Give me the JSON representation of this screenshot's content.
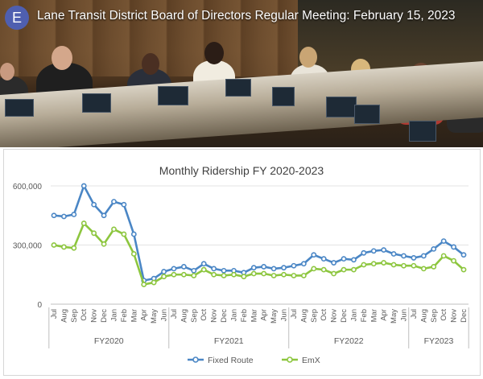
{
  "video": {
    "badge": "E",
    "title": "Lane Transit District Board of Directors Regular Meeting: February 15, 2023"
  },
  "chart_data": {
    "type": "line",
    "title": "Monthly Ridership FY 2020-2023",
    "ylim": [
      0,
      600000
    ],
    "yticks": [
      "0",
      "300,000",
      "600,000"
    ],
    "grid": "horizontal",
    "legend_position": "bottom",
    "x": [
      "Jul",
      "Aug",
      "Sep",
      "Oct",
      "Nov",
      "Dec",
      "Jan",
      "Feb",
      "Mar",
      "Apr",
      "May",
      "Jun",
      "Jul",
      "Aug",
      "Sep",
      "Oct",
      "Nov",
      "Dec",
      "Jan",
      "Feb",
      "Mar",
      "Apr",
      "May",
      "Jun",
      "Jul",
      "Aug",
      "Sep",
      "Oct",
      "Nov",
      "Dec",
      "Jan",
      "Feb",
      "Mar",
      "Apr",
      "May",
      "Jun",
      "Jul",
      "Aug",
      "Sep",
      "Oct",
      "Nov",
      "Dec"
    ],
    "groups": [
      {
        "label": "FY2020",
        "count": 12
      },
      {
        "label": "FY2021",
        "count": 12
      },
      {
        "label": "FY2022",
        "count": 12
      },
      {
        "label": "FY2023",
        "count": 6
      }
    ],
    "series": [
      {
        "name": "Fixed Route",
        "color": "#4a86c5",
        "values": [
          450000,
          445000,
          455000,
          600000,
          505000,
          450000,
          520000,
          505000,
          355000,
          120000,
          130000,
          165000,
          180000,
          190000,
          170000,
          205000,
          180000,
          170000,
          170000,
          160000,
          185000,
          190000,
          180000,
          185000,
          195000,
          205000,
          250000,
          230000,
          210000,
          230000,
          225000,
          260000,
          270000,
          275000,
          255000,
          245000,
          235000,
          245000,
          280000,
          320000,
          290000,
          250000
        ]
      },
      {
        "name": "EmX",
        "color": "#8dc63f",
        "values": [
          300000,
          290000,
          285000,
          410000,
          360000,
          305000,
          380000,
          355000,
          255000,
          100000,
          110000,
          140000,
          150000,
          150000,
          145000,
          175000,
          150000,
          145000,
          150000,
          140000,
          155000,
          155000,
          145000,
          150000,
          145000,
          145000,
          180000,
          175000,
          155000,
          175000,
          175000,
          200000,
          205000,
          210000,
          200000,
          195000,
          195000,
          180000,
          190000,
          245000,
          220000,
          175000
        ]
      }
    ]
  }
}
